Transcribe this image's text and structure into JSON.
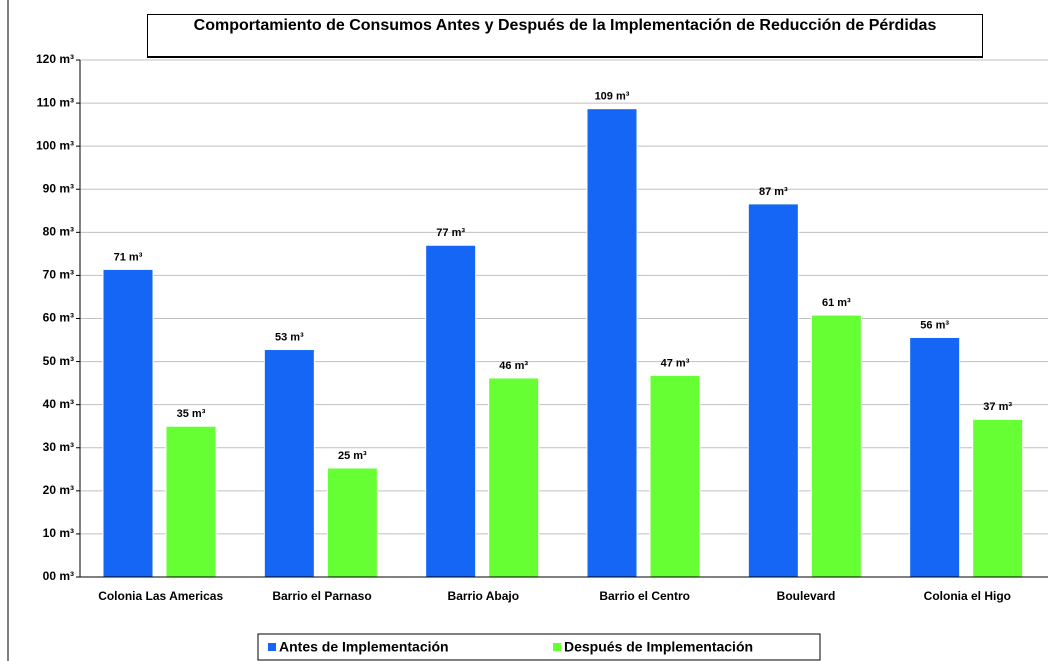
{
  "chart_data": {
    "type": "bar",
    "title": "Comportamiento de Consumos Antes y Después de la Implementación de Reducción de Pérdidas",
    "categories": [
      "Colonia Las Americas",
      "Barrio el Parnaso",
      "Barrio Abajo",
      "Barrio el Centro",
      "Boulevard",
      "Colonia el Higo"
    ],
    "series": [
      {
        "name": "Antes de Implementación",
        "color": "#1566f5",
        "values": [
          71.4,
          52.8,
          77,
          108.7,
          86.6,
          55.6
        ],
        "value_labels": [
          "71 m³",
          "53 m³",
          "77 m³",
          "109 m³",
          "87 m³",
          "56 m³"
        ]
      },
      {
        "name": "Después de Implementación",
        "color": "#66ff33",
        "values": [
          35,
          25.3,
          46.2,
          46.8,
          60.8,
          36.6
        ],
        "value_labels": [
          "35 m³",
          "25 m³",
          "46 m³",
          "47 m³",
          "61 m³",
          "37 m³"
        ]
      }
    ],
    "ylim": [
      0,
      120
    ],
    "yticks": [
      {
        "value": 0,
        "label": "00 m³"
      },
      {
        "value": 10,
        "label": "10 m³"
      },
      {
        "value": 20,
        "label": "20 m³"
      },
      {
        "value": 30,
        "label": "30 m³"
      },
      {
        "value": 40,
        "label": "40 m³"
      },
      {
        "value": 50,
        "label": "50 m³"
      },
      {
        "value": 60,
        "label": "60 m³"
      },
      {
        "value": 70,
        "label": "70 m³"
      },
      {
        "value": 80,
        "label": "80 m³"
      },
      {
        "value": 90,
        "label": "90 m³"
      },
      {
        "value": 100,
        "label": "100 m³"
      },
      {
        "value": 110,
        "label": "110 m³"
      },
      {
        "value": 120,
        "label": "120 m³"
      }
    ],
    "grid": true,
    "legend": "bottom"
  }
}
